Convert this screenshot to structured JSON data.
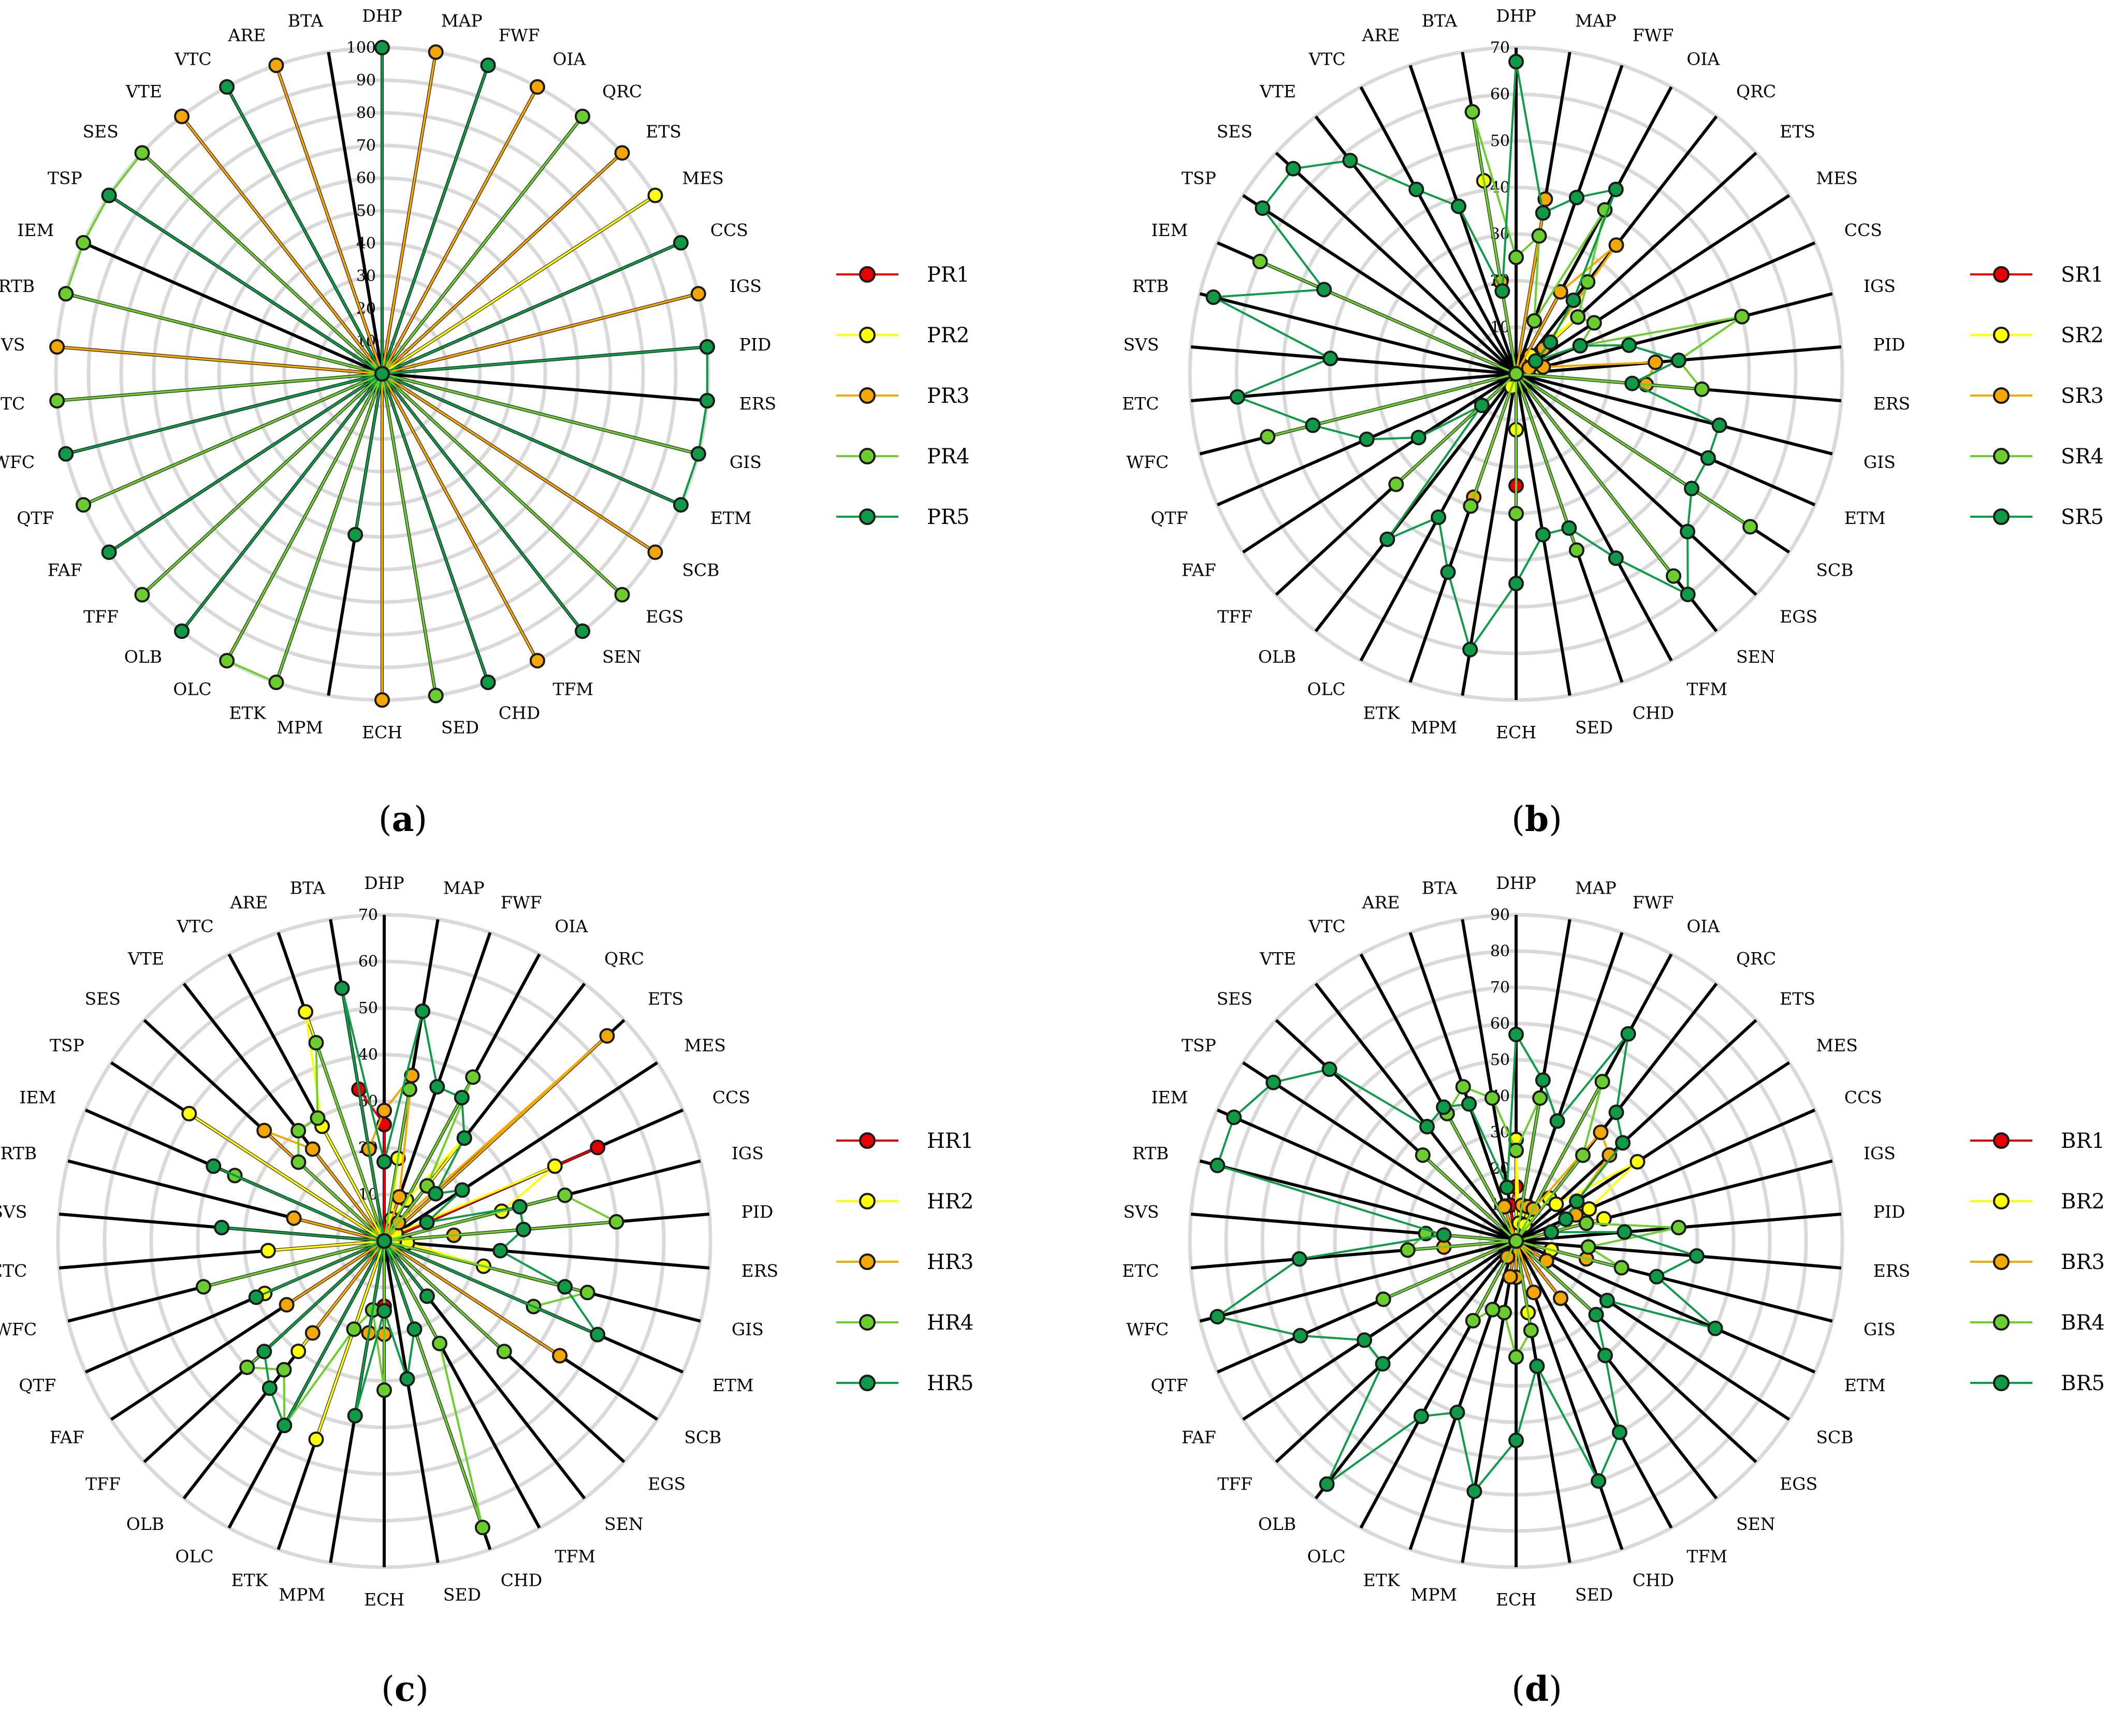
{
  "colors": {
    "s1": "#e60000",
    "s2": "#ffff00",
    "s3": "#f4a700",
    "s4": "#6ccd2e",
    "s5": "#0e9a46",
    "grid": "#d9d9d9",
    "spoke": "#000000"
  },
  "chart_data": [
    {
      "type": "radar",
      "panel": "a",
      "axes": [
        "DHP",
        "MAP",
        "FWF",
        "OIA",
        "QRC",
        "ETS",
        "MES",
        "CCS",
        "IGS",
        "PID",
        "ERS",
        "GIS",
        "ETM",
        "SCB",
        "EGS",
        "SEN",
        "TFM",
        "CHD",
        "SED",
        "ECH",
        "MPM",
        "ETK",
        "OLC",
        "OLB",
        "TFF",
        "FAF",
        "QTF",
        "WFC",
        "ETC",
        "SVS",
        "RTB",
        "IEM",
        "TSP",
        "SES",
        "VTE",
        "VTC",
        "ARE",
        "BTA"
      ],
      "rmax": 100,
      "ticks": [
        0,
        10,
        20,
        30,
        40,
        50,
        60,
        70,
        80,
        90,
        100
      ],
      "grid": "on",
      "legend_position": "right",
      "series": [
        {
          "name": "PR1",
          "values": [
            0,
            0,
            0,
            0,
            0,
            0,
            0,
            0,
            0,
            0,
            0,
            0,
            0,
            0,
            0,
            0,
            0,
            0,
            0,
            0,
            0,
            0,
            0,
            0,
            0,
            0,
            0,
            0,
            0,
            0,
            0,
            0,
            0,
            0,
            0,
            0,
            0,
            0
          ]
        },
        {
          "name": "PR2",
          "values": [
            0,
            0,
            0,
            0,
            0,
            0,
            100,
            0,
            0,
            0,
            0,
            0,
            0,
            0,
            0,
            0,
            0,
            0,
            0,
            0,
            0,
            0,
            0,
            0,
            0,
            0,
            0,
            0,
            0,
            0,
            0,
            0,
            0,
            0,
            0,
            0,
            0,
            0
          ]
        },
        {
          "name": "PR3",
          "values": [
            0,
            100,
            0,
            100,
            0,
            100,
            0,
            0,
            100,
            0,
            0,
            0,
            0,
            100,
            0,
            0,
            100,
            0,
            0,
            100,
            0,
            0,
            0,
            0,
            0,
            0,
            0,
            0,
            0,
            100,
            0,
            0,
            0,
            0,
            100,
            0,
            100,
            0
          ]
        },
        {
          "name": "PR4",
          "values": [
            0,
            0,
            0,
            0,
            100,
            0,
            0,
            0,
            0,
            100,
            100,
            100,
            0,
            0,
            100,
            0,
            0,
            0,
            100,
            0,
            0,
            100,
            100,
            0,
            100,
            0,
            100,
            0,
            100,
            0,
            100,
            100,
            100,
            100,
            0,
            0,
            0,
            0
          ]
        },
        {
          "name": "PR5",
          "values": [
            100,
            0,
            100,
            0,
            0,
            0,
            0,
            100,
            0,
            100,
            100,
            100,
            100,
            0,
            0,
            100,
            0,
            100,
            0,
            0,
            50,
            0,
            0,
            100,
            0,
            100,
            0,
            100,
            0,
            0,
            0,
            0,
            100,
            0,
            0,
            100,
            0,
            0
          ]
        }
      ]
    },
    {
      "type": "radar",
      "panel": "b",
      "axes": [
        "DHP",
        "MAP",
        "FWF",
        "OIA",
        "QRC",
        "ETS",
        "MES",
        "CCS",
        "IGS",
        "PID",
        "ERS",
        "GIS",
        "ETM",
        "SCB",
        "EGS",
        "SEN",
        "TFM",
        "CHD",
        "SED",
        "ECH",
        "MPM",
        "ETK",
        "OLC",
        "OLB",
        "TFF",
        "FAF",
        "QTF",
        "WFC",
        "ETC",
        "SVS",
        "RTB",
        "IEM",
        "TSP",
        "SES",
        "VTE",
        "VTC",
        "ARE",
        "BTA"
      ],
      "rmax": 70,
      "ticks": [
        0,
        10,
        20,
        30,
        40,
        50,
        60,
        70
      ],
      "grid": "on",
      "legend_position": "right",
      "series": [
        {
          "name": "SR1",
          "values": [
            0,
            0,
            0,
            0,
            0,
            0,
            0,
            0,
            0,
            0,
            0,
            0,
            0,
            0,
            0,
            0,
            0,
            0,
            0,
            24,
            0,
            0,
            0,
            0,
            0,
            0,
            0,
            0,
            0,
            0,
            0,
            0,
            0,
            0,
            0,
            0,
            0,
            0
          ]
        },
        {
          "name": "SR2",
          "values": [
            0,
            35,
            0,
            0,
            5,
            18,
            0,
            0,
            5,
            0,
            0,
            0,
            0,
            0,
            0,
            0,
            0,
            0,
            0,
            12,
            0,
            3,
            0,
            0,
            0,
            0,
            0,
            0,
            0,
            0,
            0,
            0,
            0,
            0,
            0,
            0,
            0,
            42
          ]
        },
        {
          "name": "SR3",
          "values": [
            0,
            38,
            0,
            20,
            35,
            8,
            0,
            3,
            6,
            30,
            28,
            0,
            0,
            0,
            0,
            0,
            0,
            0,
            0,
            0,
            0,
            28,
            0,
            0,
            0,
            0,
            0,
            0,
            0,
            0,
            0,
            0,
            0,
            0,
            0,
            0,
            0,
            20
          ]
        },
        {
          "name": "SR4",
          "values": [
            25,
            30,
            12,
            40,
            25,
            18,
            20,
            15,
            50,
            35,
            40,
            0,
            0,
            60,
            0,
            55,
            0,
            40,
            0,
            30,
            0,
            30,
            0,
            0,
            35,
            0,
            0,
            55,
            0,
            0,
            0,
            60,
            0,
            0,
            0,
            0,
            0,
            57
          ]
        },
        {
          "name": "SR5",
          "values": [
            67,
            35,
            40,
            45,
            20,
            10,
            5,
            15,
            25,
            35,
            25,
            45,
            45,
            45,
            50,
            60,
            45,
            35,
            35,
            45,
            60,
            45,
            35,
            45,
            10,
            25,
            35,
            45,
            60,
            40,
            67,
            45,
            65,
            65,
            58,
            45,
            38,
            18
          ]
        }
      ]
    },
    {
      "type": "radar",
      "panel": "c",
      "axes": [
        "DHP",
        "MAP",
        "FWF",
        "OIA",
        "QRC",
        "ETS",
        "MES",
        "CCS",
        "IGS",
        "PID",
        "ERS",
        "GIS",
        "ETM",
        "SCB",
        "EGS",
        "SEN",
        "TFM",
        "CHD",
        "SED",
        "ECH",
        "MPM",
        "ETK",
        "OLC",
        "OLB",
        "TFF",
        "FAF",
        "QTF",
        "WFC",
        "ETC",
        "SVS",
        "RTB",
        "IEM",
        "TSP",
        "SES",
        "VTE",
        "VTC",
        "ARE",
        "BTA"
      ],
      "rmax": 70,
      "ticks": [
        0,
        10,
        20,
        30,
        40,
        50,
        60,
        70
      ],
      "grid": "on",
      "legend_position": "right",
      "series": [
        {
          "name": "HR1",
          "values": [
            25,
            0,
            0,
            0,
            0,
            0,
            0,
            50,
            0,
            0,
            0,
            0,
            0,
            0,
            0,
            0,
            0,
            0,
            0,
            14,
            0,
            0,
            0,
            0,
            0,
            0,
            0,
            0,
            25,
            0,
            0,
            0,
            0,
            0,
            0,
            0,
            0,
            33
          ]
        },
        {
          "name": "HR2",
          "values": [
            0,
            18,
            5,
            10,
            28,
            0,
            3,
            40,
            26,
            0,
            5,
            22,
            0,
            0,
            0,
            0,
            0,
            0,
            0,
            0,
            0,
            45,
            0,
            30,
            0,
            0,
            28,
            0,
            25,
            0,
            0,
            0,
            50,
            0,
            0,
            28,
            52,
            0
          ]
        },
        {
          "name": "HR3",
          "values": [
            28,
            36,
            10,
            0,
            5,
            65,
            0,
            0,
            0,
            15,
            0,
            0,
            0,
            45,
            0,
            0,
            0,
            0,
            0,
            20,
            20,
            0,
            0,
            25,
            0,
            25,
            0,
            0,
            0,
            0,
            20,
            0,
            0,
            35,
            25,
            0,
            0,
            20
          ]
        },
        {
          "name": "HR4",
          "values": [
            0,
            33,
            0,
            40,
            15,
            0,
            0,
            0,
            40,
            50,
            0,
            45,
            35,
            0,
            35,
            0,
            25,
            65,
            0,
            32,
            15,
            20,
            45,
            35,
            40,
            0,
            0,
            40,
            0,
            0,
            0,
            35,
            0,
            25,
            30,
            30,
            45,
            0
          ]
        },
        {
          "name": "HR5",
          "values": [
            17,
            50,
            35,
            35,
            28,
            15,
            20,
            10,
            30,
            30,
            25,
            40,
            50,
            0,
            0,
            15,
            0,
            20,
            30,
            15,
            38,
            0,
            45,
            40,
            35,
            0,
            30,
            0,
            0,
            35,
            0,
            40,
            0,
            0,
            0,
            0,
            0,
            55
          ]
        }
      ]
    },
    {
      "type": "radar",
      "panel": "d",
      "axes": [
        "DHP",
        "MAP",
        "FWF",
        "OIA",
        "QRC",
        "ETS",
        "MES",
        "CCS",
        "IGS",
        "PID",
        "ERS",
        "GIS",
        "ETM",
        "SCB",
        "EGS",
        "SEN",
        "TFM",
        "CHD",
        "SED",
        "ECH",
        "MPM",
        "ETK",
        "OLC",
        "OLB",
        "TFF",
        "FAF",
        "QTF",
        "WFC",
        "ETC",
        "SVS",
        "RTB",
        "IEM",
        "TSP",
        "SES",
        "VTE",
        "VTC",
        "ARE",
        "BTA"
      ],
      "rmax": 90,
      "ticks": [
        0,
        10,
        20,
        30,
        40,
        50,
        60,
        70,
        80,
        90
      ],
      "grid": "on",
      "legend_position": "right",
      "series": [
        {
          "name": "BR1",
          "values": [
            15,
            0,
            0,
            0,
            0,
            0,
            0,
            0,
            10,
            0,
            0,
            0,
            0,
            0,
            0,
            0,
            0,
            0,
            0,
            0,
            0,
            0,
            0,
            0,
            0,
            0,
            0,
            0,
            0,
            0,
            0,
            0,
            0,
            0,
            0,
            0,
            0,
            10
          ]
        },
        {
          "name": "BR2",
          "values": [
            28,
            5,
            10,
            5,
            15,
            15,
            40,
            22,
            25,
            0,
            0,
            10,
            0,
            0,
            0,
            0,
            0,
            0,
            20,
            0,
            0,
            0,
            0,
            0,
            0,
            0,
            0,
            0,
            0,
            0,
            0,
            0,
            0,
            0,
            0,
            0,
            10,
            0
          ]
        },
        {
          "name": "BR3",
          "values": [
            0,
            10,
            10,
            10,
            38,
            35,
            20,
            18,
            20,
            0,
            0,
            20,
            0,
            10,
            0,
            20,
            0,
            15,
            0,
            10,
            10,
            0,
            5,
            0,
            0,
            0,
            0,
            0,
            20,
            0,
            0,
            0,
            0,
            0,
            0,
            0,
            10,
            0
          ]
        },
        {
          "name": "BR4",
          "values": [
            25,
            40,
            0,
            50,
            30,
            0,
            0,
            0,
            20,
            45,
            20,
            30,
            0,
            0,
            30,
            0,
            0,
            0,
            25,
            32,
            20,
            20,
            25,
            0,
            0,
            0,
            40,
            0,
            30,
            25,
            0,
            0,
            0,
            35,
            0,
            40,
            45,
            40
          ]
        },
        {
          "name": "BR5",
          "values": [
            57,
            45,
            35,
            65,
            45,
            40,
            20,
            15,
            10,
            30,
            50,
            40,
            60,
            30,
            30,
            40,
            60,
            70,
            35,
            55,
            70,
            50,
            55,
            85,
            50,
            50,
            65,
            85,
            60,
            20,
            85,
            85,
            80,
            70,
            40,
            42,
            40,
            15
          ]
        }
      ]
    }
  ]
}
